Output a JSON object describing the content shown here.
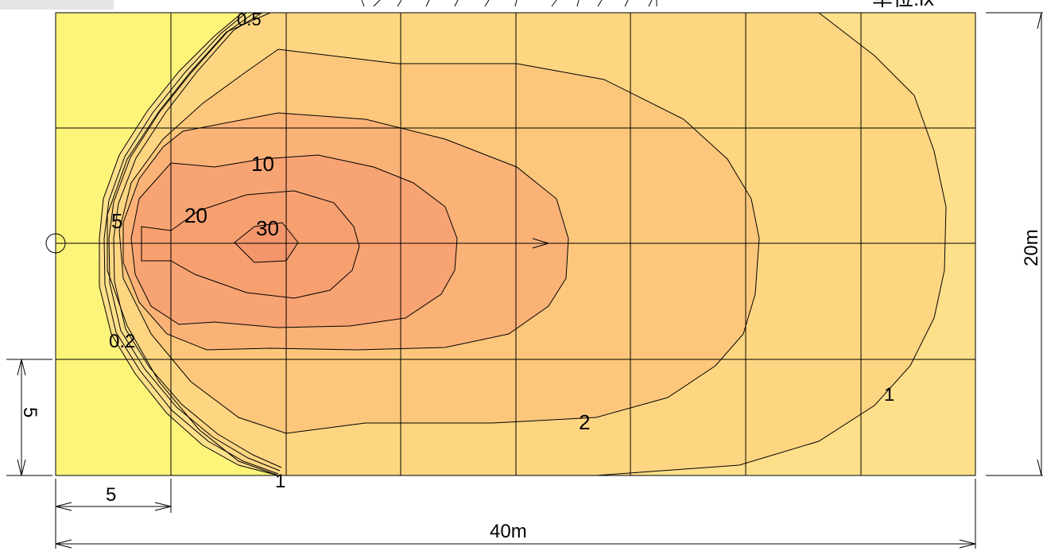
{
  "unit_label": "単位:lx",
  "header_strip": {
    "visible": true
  },
  "contour_labels": {
    "c0_5": "0.5",
    "c0_2": "0.2",
    "c1_bottom": "1",
    "c1_right": "1",
    "c2": "2",
    "c5": "5",
    "c10": "10",
    "c20": "20",
    "c30": "30"
  },
  "dimensions": {
    "bottom_small": "5",
    "bottom_total": "40m",
    "left_small": "5",
    "right_total": "20m"
  },
  "levels": [
    {
      "value": 0.5,
      "color": "#ffe08a"
    },
    {
      "value": 1,
      "color": "#fed682"
    },
    {
      "value": 2,
      "color": "#fdc77b"
    },
    {
      "value": 5,
      "color": "#fbb277"
    },
    {
      "value": 10,
      "color": "#f8a373"
    },
    {
      "value": 30,
      "color": "#f4966c"
    }
  ],
  "background_colors": {
    "low": "#fdf57a",
    "field_edge": "#fde892"
  }
}
